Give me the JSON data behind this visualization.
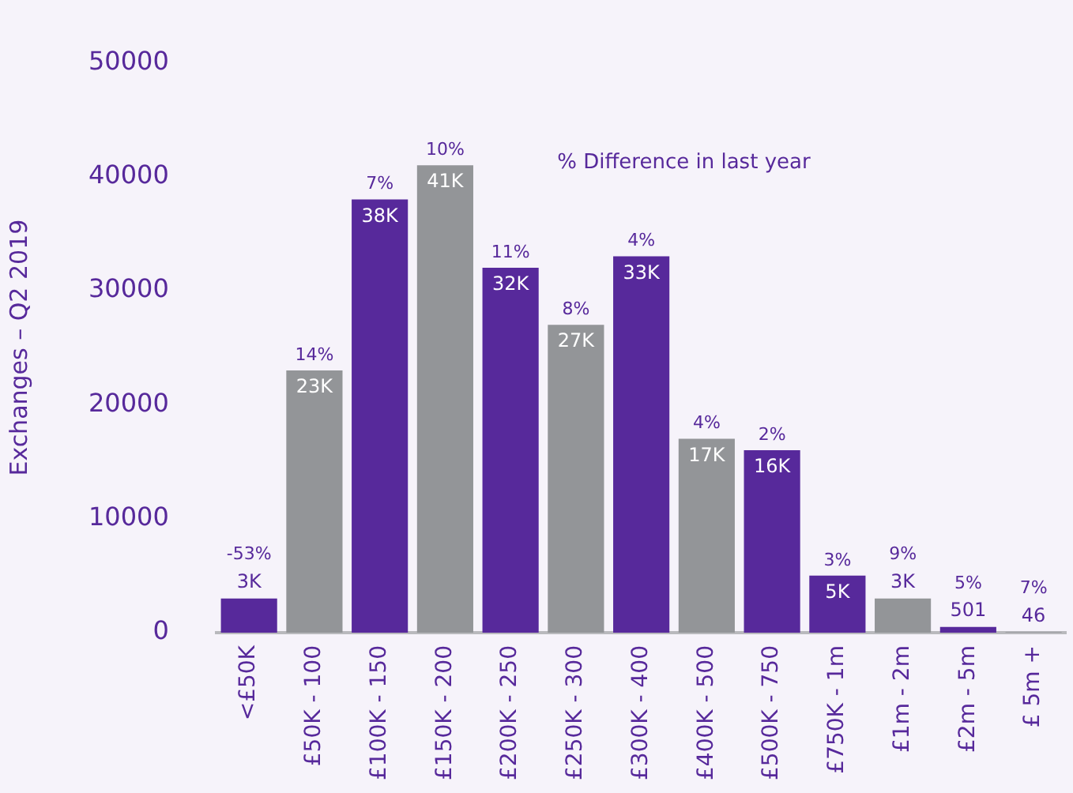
{
  "chart_data": {
    "type": "bar",
    "ylabel": "Exchanges – Q2 2019",
    "categories": [
      "<£50K",
      "£50K - 100",
      "£100K - 150",
      "£150K - 200",
      "£200K - 250",
      "£250K - 300",
      "£300K - 400",
      "£400K - 500",
      "£500K - 750",
      "£750K - 1m",
      "£1m - 2m",
      "£2m - 5m",
      "£ 5m +"
    ],
    "values": [
      3000,
      23000,
      38000,
      41000,
      32000,
      27000,
      33000,
      17000,
      16000,
      5000,
      3000,
      501,
      46
    ],
    "value_labels": [
      "3K",
      "23K",
      "38K",
      "41K",
      "32K",
      "27K",
      "33K",
      "17K",
      "16K",
      "5K",
      "3K",
      "501",
      "46"
    ],
    "colors": [
      "#57299b",
      "#939598",
      "#57299b",
      "#939598",
      "#57299b",
      "#939598",
      "#57299b",
      "#939598",
      "#57299b",
      "#57299b",
      "#939598",
      "#57299b",
      "#939598"
    ],
    "ylim": [
      0,
      50000
    ],
    "yticks": [
      0,
      10000,
      20000,
      30000,
      40000,
      50000
    ],
    "grid": false,
    "legend": false,
    "annotations": [
      "% Difference in last year",
      {
        "text": "-53%",
        "x": "<£50K",
        "y": 3000
      },
      {
        "text": "14%",
        "x": "£50K - 100",
        "y": 23000
      },
      {
        "text": "7%",
        "x": "£100K - 150",
        "y": 38000
      },
      {
        "text": "10%",
        "x": "£150K - 200",
        "y": 41000
      },
      {
        "text": "11%",
        "x": "£200K - 250",
        "y": 32000
      },
      {
        "text": "8%",
        "x": "£250K - 300",
        "y": 27000
      },
      {
        "text": "4%",
        "x": "£300K - 400",
        "y": 33000
      },
      {
        "text": "4%",
        "x": "£400K - 500",
        "y": 17000
      },
      {
        "text": "2%",
        "x": "£500K - 750",
        "y": 16000
      },
      {
        "text": "3%",
        "x": "£750K - 1m",
        "y": 5000
      },
      {
        "text": "9%",
        "x": "£1m - 2m",
        "y": 3000
      },
      {
        "text": "5%",
        "x": "£2m - 5m",
        "y": 501
      },
      {
        "text": "7%",
        "x": "£ 5m +",
        "y": 46
      }
    ]
  }
}
